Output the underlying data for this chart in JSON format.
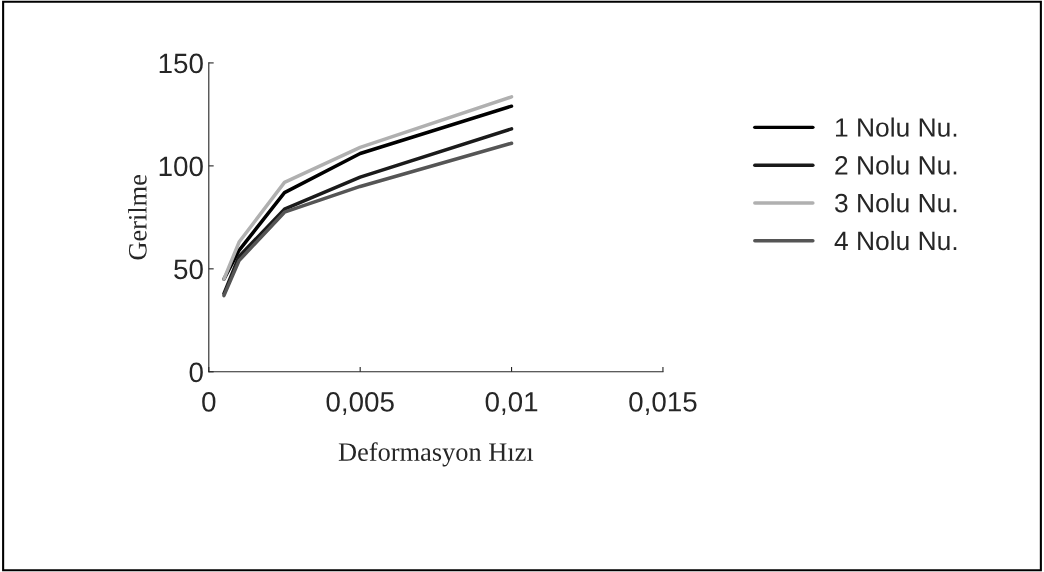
{
  "chart_data": {
    "type": "line",
    "xlabel": "Deformasyon Hızı",
    "ylabel": "Gerilme",
    "x": [
      0.0005,
      0.001,
      0.0025,
      0.005,
      0.01
    ],
    "series": [
      {
        "name": "1 Nolu Nu.",
        "color": "#000000",
        "values": [
          45,
          59,
          87,
          106,
          129
        ]
      },
      {
        "name": "2 Nolu Nu.",
        "color": "#1a1a1a",
        "values": [
          38,
          56,
          79,
          94.5,
          118
        ]
      },
      {
        "name": "3 Nolu Nu.",
        "color": "#b0b0b0",
        "values": [
          45,
          63,
          92,
          109,
          133.5
        ]
      },
      {
        "name": "4 Nolu Nu.",
        "color": "#555555",
        "values": [
          37,
          54,
          77.5,
          90,
          111
        ]
      }
    ],
    "xlim": [
      0,
      0.015
    ],
    "xticks": [
      {
        "value": 0,
        "label": "0"
      },
      {
        "value": 0.005,
        "label": "0,005"
      },
      {
        "value": 0.01,
        "label": "0,01"
      },
      {
        "value": 0.015,
        "label": "0,015"
      }
    ],
    "ylim": [
      0,
      150
    ],
    "yticks": [
      0,
      50,
      100,
      150
    ],
    "legend": "right",
    "grid": false,
    "marker": "none",
    "line_style": "solid"
  }
}
